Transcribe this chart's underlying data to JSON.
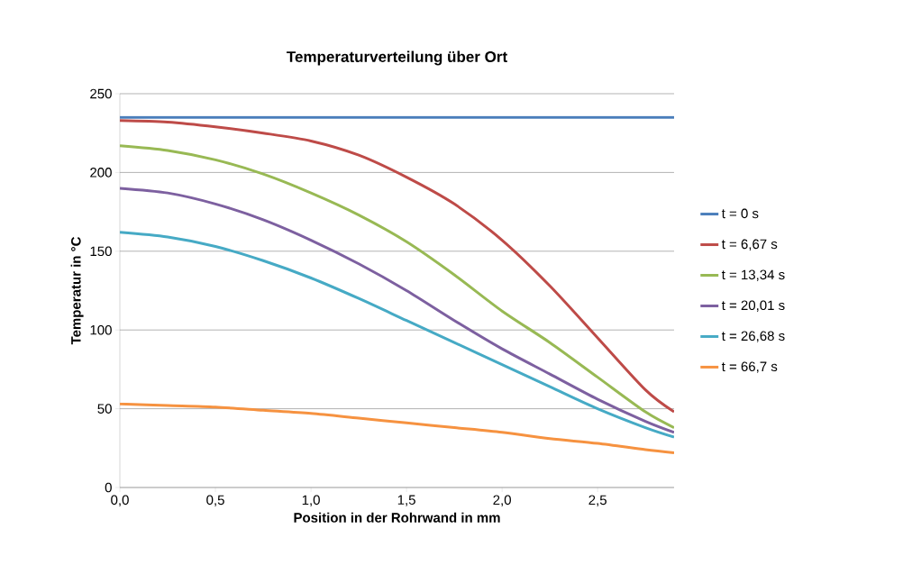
{
  "chart_data": {
    "type": "line",
    "title": "Temperaturverteilung über Ort",
    "xlabel": "Position in der Rohrwand in mm",
    "ylabel": "Temperatur in °C",
    "x": [
      0,
      0.25,
      0.5,
      0.75,
      1.0,
      1.25,
      1.5,
      1.75,
      2.0,
      2.25,
      2.5,
      2.75,
      2.9
    ],
    "series": [
      {
        "name": "t = 0 s",
        "color": "#4a7ebb",
        "values": [
          235,
          235,
          235,
          235,
          235,
          235,
          235,
          235,
          235,
          235,
          235,
          235,
          235
        ]
      },
      {
        "name": "t = 6,67 s",
        "color": "#be4b48",
        "values": [
          233,
          232,
          229,
          225,
          220,
          211,
          197,
          180,
          157,
          128,
          95,
          62,
          48
        ]
      },
      {
        "name": "t = 13,34 s",
        "color": "#98b954",
        "values": [
          217,
          214,
          208,
          199,
          187,
          173,
          156,
          135,
          112,
          92,
          70,
          48,
          38
        ]
      },
      {
        "name": "t = 20,01 s",
        "color": "#7d60a0",
        "values": [
          190,
          187,
          180,
          170,
          157,
          142,
          125,
          106,
          88,
          72,
          56,
          42,
          35
        ]
      },
      {
        "name": "t = 26,68 s",
        "color": "#46aac5",
        "values": [
          162,
          159,
          153,
          144,
          133,
          120,
          106,
          92,
          78,
          64,
          50,
          38,
          32
        ]
      },
      {
        "name": "t = 66,7 s",
        "color": "#f69240",
        "values": [
          53,
          52,
          51,
          49,
          47,
          44,
          41,
          38,
          35,
          31,
          28,
          24,
          22
        ]
      }
    ],
    "xlim": [
      0,
      2.9
    ],
    "ylim": [
      0,
      250
    ],
    "xticks": [
      {
        "value": 0,
        "label": "0,0"
      },
      {
        "value": 0.5,
        "label": "0,5"
      },
      {
        "value": 1.0,
        "label": "1,0"
      },
      {
        "value": 1.5,
        "label": "1,5"
      },
      {
        "value": 2.0,
        "label": "2,0"
      },
      {
        "value": 2.5,
        "label": "2,5"
      }
    ],
    "yticks": [
      0,
      50,
      100,
      150,
      200,
      250
    ],
    "grid": "y",
    "legend": "right",
    "marker": "none",
    "line_style": "solid"
  }
}
